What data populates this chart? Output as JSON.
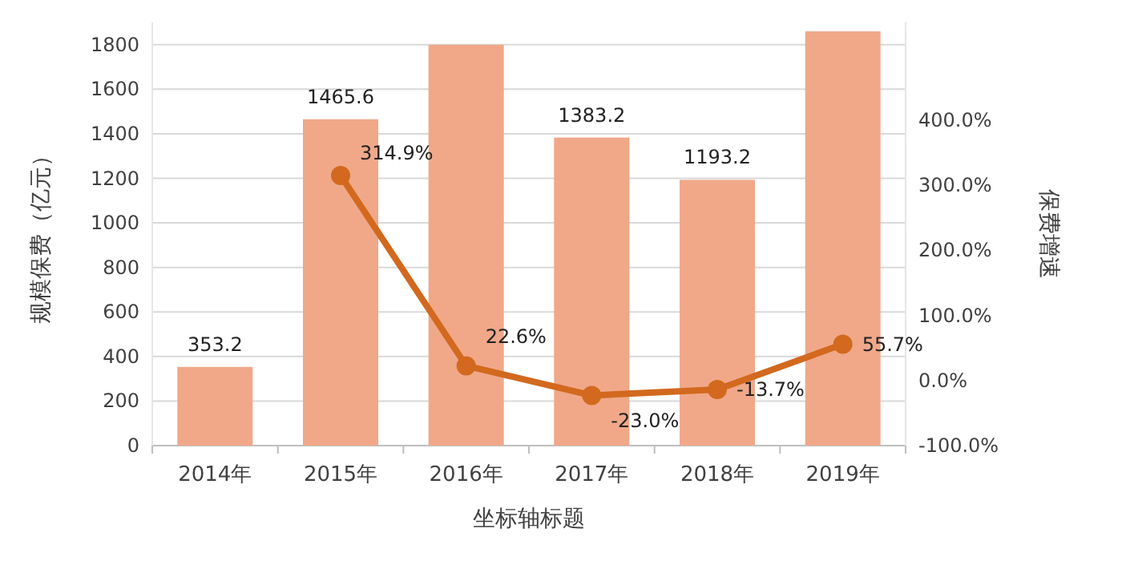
{
  "chart_data": {
    "type": "bar",
    "xlabel": "坐标轴标题",
    "ylabel": "规模保费（亿元）",
    "y2label": "保费增速",
    "categories": [
      "2014年",
      "2015年",
      "2016年",
      "2017年",
      "2018年",
      "2019年"
    ],
    "series": [
      {
        "color": "#f0a889",
        "values": [
          353.2,
          1465.6,
          1800,
          1383.2,
          1193.2,
          1860
        ],
        "value_labels": [
          "353.2",
          "1465.6",
          null,
          "1383.2",
          "1193.2",
          null
        ]
      },
      {
        "type": "line",
        "axis": "y2",
        "color": "#d2691e",
        "marker": "circle",
        "line_style": "solid",
        "values": [
          null,
          314.9,
          22.6,
          -23.0,
          -13.7,
          55.7
        ],
        "value_labels": [
          null,
          "314.9%",
          "22.6%",
          "-23.0%",
          "-13.7%",
          "55.7%"
        ]
      }
    ],
    "ylim": [
      0,
      1900
    ],
    "yticks": [
      0,
      200,
      400,
      600,
      800,
      1000,
      1200,
      1400,
      1600,
      1800
    ],
    "y2lim": [
      -100,
      550
    ],
    "y2ticks": [
      {
        "value": -100,
        "label": "-100.0%"
      },
      {
        "value": 0,
        "label": "0.0%"
      },
      {
        "value": 100,
        "label": "100.0%"
      },
      {
        "value": 200,
        "label": "200.0%"
      },
      {
        "value": 300,
        "label": "300.0%"
      },
      {
        "value": 400,
        "label": "400.0%"
      }
    ],
    "grid": "y"
  }
}
